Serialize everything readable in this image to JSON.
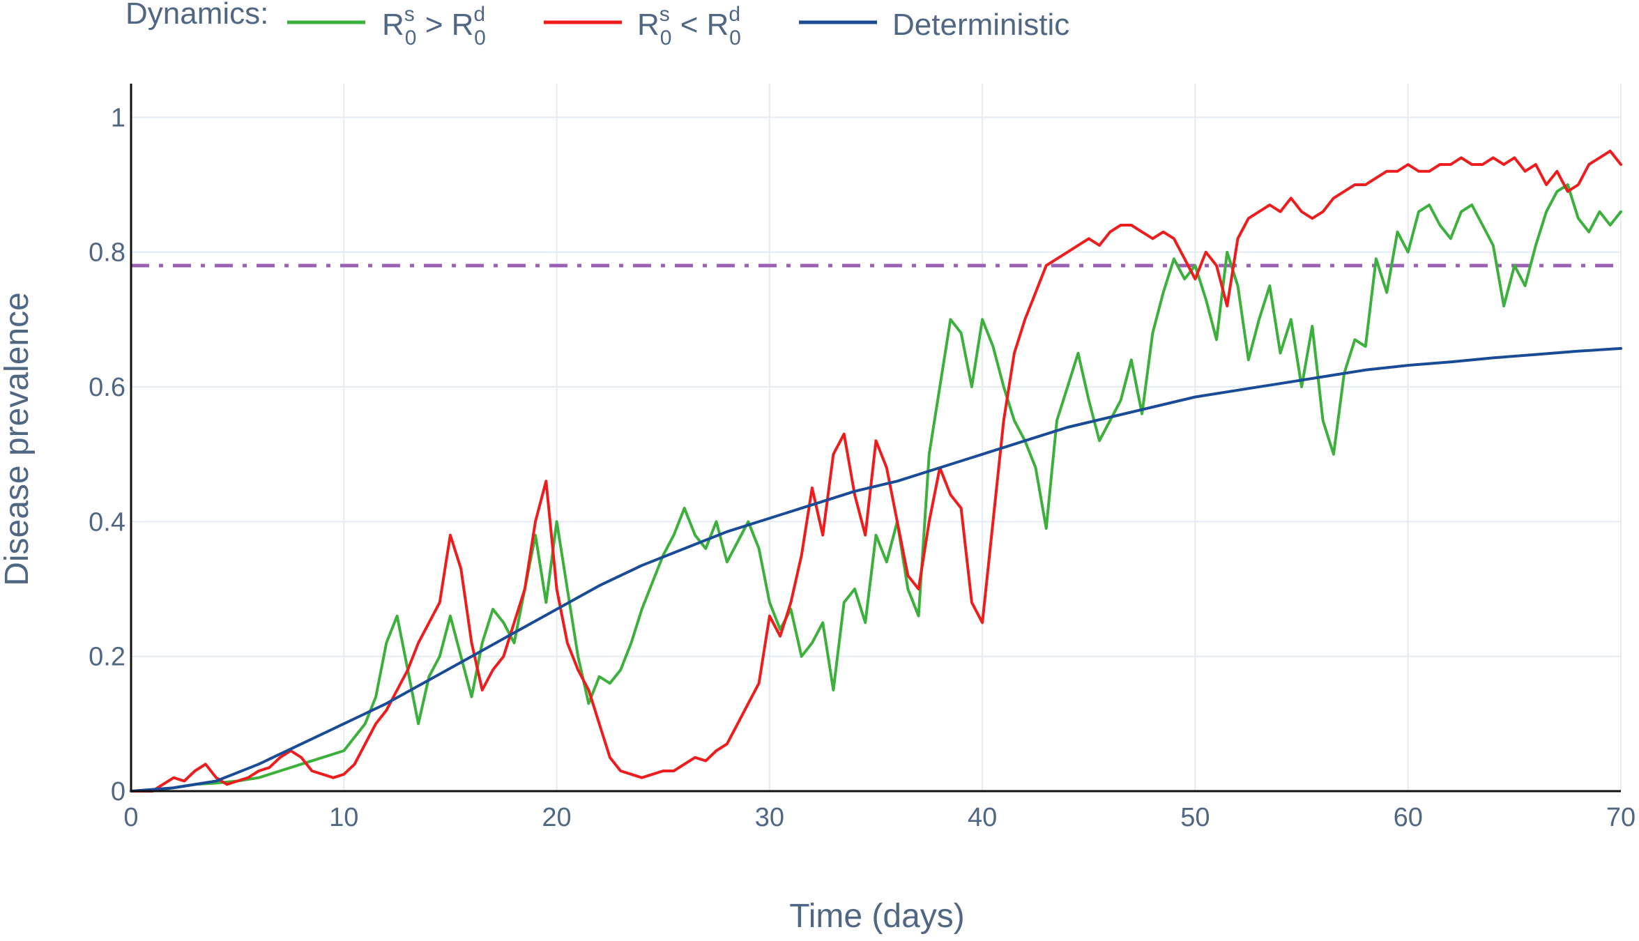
{
  "chart_data": {
    "type": "line",
    "title": "",
    "xlabel": "Time (days)",
    "ylabel": "Disease prevalence",
    "xlim": [
      0,
      70
    ],
    "ylim": [
      0,
      1.05
    ],
    "x_ticks": [
      0,
      10,
      20,
      30,
      40,
      50,
      60,
      70
    ],
    "y_ticks": [
      0,
      0.2,
      0.4,
      0.6,
      0.8,
      1
    ],
    "x_tick_labels": [
      "0",
      "10",
      "20",
      "30",
      "40",
      "50",
      "60",
      "70"
    ],
    "y_tick_labels": [
      "0",
      "0.2",
      "0.4",
      "0.6",
      "0.8",
      "1"
    ],
    "grid": true,
    "legend": {
      "title": "Dynamics:",
      "position": "top",
      "entries": [
        {
          "base": "R",
          "sup1": "s",
          "sub1": "0",
          "op": " > ",
          "base2": "R",
          "sup2": "d",
          "sub2": "0",
          "color": "#3cb03c"
        },
        {
          "base": "R",
          "sup1": "s",
          "sub1": "0",
          "op": " < ",
          "base2": "R",
          "sup2": "d",
          "sub2": "0",
          "color": "#ee1c1c"
        },
        {
          "label": "Deterministic",
          "color": "#1a4b96"
        }
      ]
    },
    "threshold": {
      "y": 0.78,
      "color": "#9b5fb4",
      "style": "dashdot"
    },
    "series": [
      {
        "color": "#3cb03c",
        "x": [
          0,
          1,
          2,
          3,
          4,
          5,
          6,
          7,
          8,
          9,
          10,
          11,
          11.5,
          12,
          12.5,
          13,
          13.5,
          14,
          14.5,
          15,
          15.5,
          16,
          16.5,
          17,
          17.5,
          18,
          18.5,
          19,
          19.5,
          20,
          20.5,
          21,
          21.5,
          22,
          22.5,
          23,
          23.5,
          24,
          24.5,
          25,
          25.5,
          26,
          26.5,
          27,
          27.5,
          28,
          28.5,
          29,
          29.5,
          30,
          30.5,
          31,
          31.5,
          32,
          32.5,
          33,
          33.5,
          34,
          34.5,
          35,
          35.5,
          36,
          36.5,
          37,
          37.5,
          38,
          38.5,
          39,
          39.5,
          40,
          40.5,
          41,
          41.5,
          42,
          42.5,
          43,
          43.5,
          44,
          44.5,
          45,
          45.5,
          46,
          46.5,
          47,
          47.5,
          48,
          48.5,
          49,
          49.5,
          50,
          50.5,
          51,
          51.5,
          52,
          52.5,
          53,
          53.5,
          54,
          54.5,
          55,
          55.5,
          56,
          56.5,
          57,
          57.5,
          58,
          58.5,
          59,
          59.5,
          60,
          60.5,
          61,
          61.5,
          62,
          62.5,
          63,
          63.5,
          64,
          64.5,
          65,
          65.5,
          66,
          66.5,
          67,
          67.5,
          68,
          68.5,
          69,
          69.5,
          70
        ],
        "y": [
          0,
          0,
          0.005,
          0.01,
          0.012,
          0.015,
          0.02,
          0.03,
          0.04,
          0.05,
          0.06,
          0.1,
          0.14,
          0.22,
          0.26,
          0.18,
          0.1,
          0.17,
          0.2,
          0.26,
          0.2,
          0.14,
          0.22,
          0.27,
          0.25,
          0.22,
          0.3,
          0.38,
          0.28,
          0.4,
          0.3,
          0.2,
          0.13,
          0.17,
          0.16,
          0.18,
          0.22,
          0.27,
          0.31,
          0.35,
          0.38,
          0.42,
          0.38,
          0.36,
          0.4,
          0.34,
          0.37,
          0.4,
          0.36,
          0.28,
          0.24,
          0.27,
          0.2,
          0.22,
          0.25,
          0.15,
          0.28,
          0.3,
          0.25,
          0.38,
          0.34,
          0.4,
          0.3,
          0.26,
          0.5,
          0.6,
          0.7,
          0.68,
          0.6,
          0.7,
          0.66,
          0.6,
          0.55,
          0.52,
          0.48,
          0.39,
          0.55,
          0.6,
          0.65,
          0.58,
          0.52,
          0.55,
          0.58,
          0.64,
          0.56,
          0.68,
          0.74,
          0.79,
          0.76,
          0.78,
          0.73,
          0.67,
          0.8,
          0.75,
          0.64,
          0.7,
          0.75,
          0.65,
          0.7,
          0.6,
          0.69,
          0.55,
          0.5,
          0.62,
          0.67,
          0.66,
          0.79,
          0.74,
          0.83,
          0.8,
          0.86,
          0.87,
          0.84,
          0.82,
          0.86,
          0.87,
          0.84,
          0.81,
          0.72,
          0.78,
          0.75,
          0.81,
          0.86,
          0.89,
          0.9,
          0.85,
          0.83,
          0.86,
          0.84,
          0.86
        ]
      },
      {
        "color": "#ee1c1c",
        "x": [
          0,
          1,
          1.5,
          2,
          2.5,
          3,
          3.5,
          4,
          4.5,
          5,
          5.5,
          6,
          6.5,
          7,
          7.5,
          8,
          8.5,
          9,
          9.5,
          10,
          10.5,
          11,
          11.5,
          12,
          12.5,
          13,
          13.5,
          14,
          14.5,
          15,
          15.5,
          16,
          16.5,
          17,
          17.5,
          18,
          18.5,
          19,
          19.5,
          20,
          20.5,
          21,
          21.5,
          22,
          22.5,
          23,
          23.5,
          24,
          24.5,
          25,
          25.5,
          26,
          26.5,
          27,
          27.5,
          28,
          28.5,
          29,
          29.5,
          30,
          30.5,
          31,
          31.5,
          32,
          32.5,
          33,
          33.5,
          34,
          34.5,
          35,
          35.5,
          36,
          36.5,
          37,
          37.5,
          38,
          38.5,
          39,
          39.5,
          40,
          40.5,
          41,
          41.5,
          42,
          42.5,
          43,
          43.5,
          44,
          44.5,
          45,
          45.5,
          46,
          46.5,
          47,
          47.5,
          48,
          48.5,
          49,
          49.5,
          50,
          50.5,
          51,
          51.5,
          52,
          52.5,
          53,
          53.5,
          54,
          54.5,
          55,
          55.5,
          56,
          56.5,
          57,
          57.5,
          58,
          58.5,
          59,
          59.5,
          60,
          60.5,
          61,
          61.5,
          62,
          62.5,
          63,
          63.5,
          64,
          64.5,
          65,
          65.5,
          66,
          66.5,
          67,
          67.5,
          68,
          68.5,
          69,
          69.5,
          70
        ],
        "y": [
          0,
          0,
          0.01,
          0.02,
          0.015,
          0.03,
          0.04,
          0.02,
          0.01,
          0.015,
          0.02,
          0.03,
          0.035,
          0.05,
          0.06,
          0.05,
          0.03,
          0.025,
          0.02,
          0.025,
          0.04,
          0.07,
          0.1,
          0.12,
          0.15,
          0.18,
          0.22,
          0.25,
          0.28,
          0.38,
          0.33,
          0.22,
          0.15,
          0.18,
          0.2,
          0.25,
          0.3,
          0.4,
          0.46,
          0.3,
          0.22,
          0.18,
          0.15,
          0.1,
          0.05,
          0.03,
          0.025,
          0.02,
          0.025,
          0.03,
          0.03,
          0.04,
          0.05,
          0.045,
          0.06,
          0.07,
          0.1,
          0.13,
          0.16,
          0.26,
          0.23,
          0.28,
          0.35,
          0.45,
          0.38,
          0.5,
          0.53,
          0.44,
          0.38,
          0.52,
          0.48,
          0.4,
          0.32,
          0.3,
          0.4,
          0.48,
          0.44,
          0.42,
          0.28,
          0.25,
          0.4,
          0.55,
          0.65,
          0.7,
          0.74,
          0.78,
          0.79,
          0.8,
          0.81,
          0.82,
          0.81,
          0.83,
          0.84,
          0.84,
          0.83,
          0.82,
          0.83,
          0.82,
          0.79,
          0.76,
          0.8,
          0.78,
          0.72,
          0.82,
          0.85,
          0.86,
          0.87,
          0.86,
          0.88,
          0.86,
          0.85,
          0.86,
          0.88,
          0.89,
          0.9,
          0.9,
          0.91,
          0.92,
          0.92,
          0.93,
          0.92,
          0.92,
          0.93,
          0.93,
          0.94,
          0.93,
          0.93,
          0.94,
          0.93,
          0.94,
          0.92,
          0.93,
          0.9,
          0.92,
          0.89,
          0.9,
          0.93,
          0.94,
          0.95,
          0.93
        ]
      },
      {
        "color": "#1a4b96",
        "x": [
          0,
          2,
          4,
          6,
          8,
          10,
          12,
          14,
          16,
          18,
          20,
          22,
          24,
          26,
          28,
          30,
          32,
          34,
          36,
          38,
          40,
          42,
          44,
          46,
          48,
          50,
          52,
          54,
          56,
          58,
          60,
          62,
          64,
          66,
          68,
          70
        ],
        "y": [
          0,
          0.005,
          0.015,
          0.04,
          0.07,
          0.1,
          0.13,
          0.165,
          0.2,
          0.235,
          0.27,
          0.305,
          0.335,
          0.36,
          0.385,
          0.405,
          0.425,
          0.445,
          0.46,
          0.48,
          0.5,
          0.52,
          0.54,
          0.555,
          0.57,
          0.585,
          0.595,
          0.605,
          0.615,
          0.625,
          0.632,
          0.637,
          0.643,
          0.648,
          0.653,
          0.657
        ]
      }
    ]
  }
}
